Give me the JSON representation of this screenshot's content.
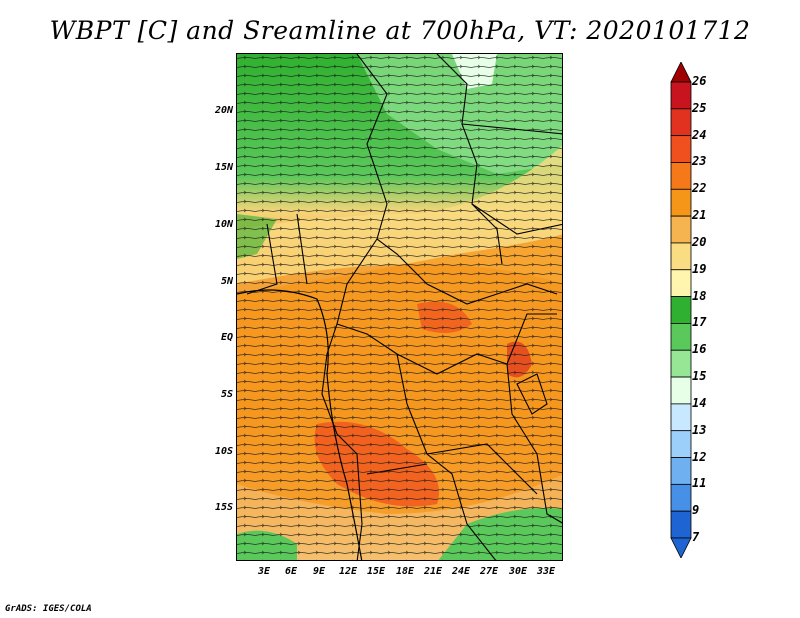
{
  "title": "WBPT [C] and Sreamline at 700hPa, VT: 2020101712",
  "credit": "GrADS: IGES/COLA",
  "axes": {
    "lat_labels": [
      "20N",
      "15N",
      "10N",
      "5N",
      "EQ",
      "5S",
      "10S",
      "15S"
    ],
    "lon_labels": [
      "3E",
      "6E",
      "9E",
      "12E",
      "15E",
      "18E",
      "21E",
      "24E",
      "27E",
      "30E",
      "33E"
    ]
  },
  "colorbar": {
    "labels": [
      "26",
      "25",
      "24",
      "23",
      "22",
      "21",
      "20",
      "19",
      "18",
      "17",
      "16",
      "15",
      "14",
      "13",
      "12",
      "11",
      "9",
      "7"
    ],
    "colors": [
      "#a00000",
      "#c8141e",
      "#e0321e",
      "#f0501e",
      "#f57819",
      "#f59619",
      "#f5b450",
      "#fadc82",
      "#fff5af",
      "#30b030",
      "#5ac85a",
      "#96e696",
      "#e6ffe6",
      "#c8e8ff",
      "#9cd0fa",
      "#6eb0f0",
      "#4690e8",
      "#1e64d2"
    ]
  }
}
